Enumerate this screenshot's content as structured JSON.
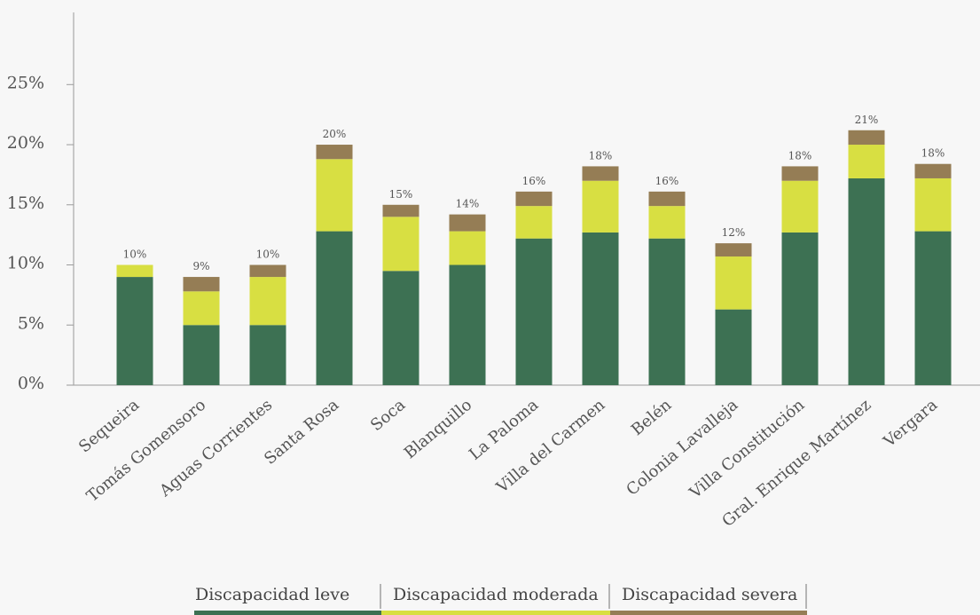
{
  "chart_data": {
    "type": "bar",
    "stacked": true,
    "categories": [
      "Sequeira",
      "Tomás Gomensoro",
      "Aguas Corrientes",
      "Santa Rosa",
      "Soca",
      "Blanquillo",
      "La Paloma",
      "Villa del Carmen",
      "Belén",
      "Colonia Lavalleja",
      "Villa Constitución",
      "Gral. Enrique Martínez",
      "Vergara"
    ],
    "series": [
      {
        "name": "Discapacidad leve",
        "color": "#3d7153",
        "values": [
          9.0,
          5.0,
          5.0,
          12.8,
          9.5,
          10.0,
          12.2,
          12.7,
          12.2,
          6.3,
          12.7,
          17.2,
          12.8
        ]
      },
      {
        "name": "Discapacidad moderada",
        "color": "#d8df42",
        "values": [
          1.0,
          2.8,
          4.0,
          6.0,
          4.5,
          2.8,
          2.7,
          4.3,
          2.7,
          4.4,
          4.3,
          2.8,
          4.4
        ]
      },
      {
        "name": "Discapacidad severa",
        "color": "#957d55",
        "values": [
          0.0,
          1.2,
          1.0,
          1.2,
          1.0,
          1.4,
          1.2,
          1.2,
          1.2,
          1.1,
          1.2,
          1.2,
          1.2
        ]
      }
    ],
    "totals_labels": [
      "10%",
      "9%",
      "10%",
      "20%",
      "15%",
      "14%",
      "16%",
      "18%",
      "16%",
      "12%",
      "18%",
      "21%",
      "18%"
    ],
    "y_ticks": [
      "0%",
      "5%",
      "10%",
      "15%",
      "20%",
      "25%"
    ],
    "y_tick_values": [
      0,
      5,
      10,
      15,
      20,
      25
    ],
    "ylim": [
      0,
      31
    ],
    "grid": false,
    "legend_position": "bottom"
  },
  "legend": {
    "items": [
      {
        "label": "Discapacidad leve",
        "color": "#3d7153"
      },
      {
        "label": "Discapacidad moderada",
        "color": "#d8df42"
      },
      {
        "label": "Discapacidad severa",
        "color": "#957d55"
      }
    ]
  }
}
